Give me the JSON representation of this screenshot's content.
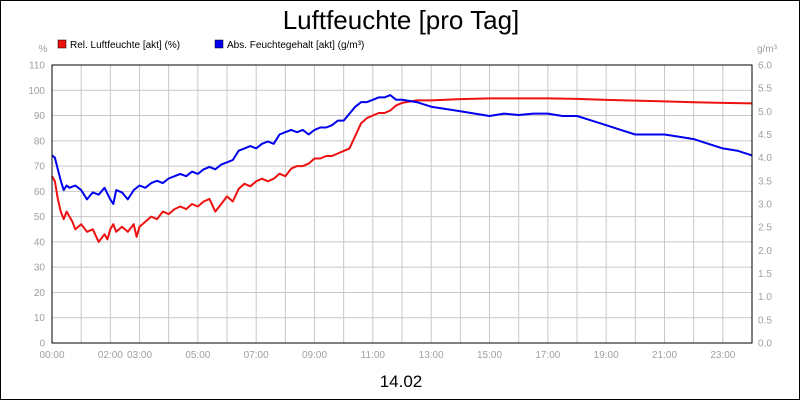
{
  "chart_data": {
    "type": "line",
    "title": "Luftfeuchte [pro Tag]",
    "xlabel": "14.02",
    "y_left_unit": "%",
    "y_right_unit": "g/m³",
    "x_ticks": [
      "00:00",
      "02:00",
      "03:00",
      "05:00",
      "07:00",
      "09:00",
      "11:00",
      "13:00",
      "15:00",
      "17:00",
      "19:00",
      "21:00",
      "23:00"
    ],
    "x_tick_hours": [
      0,
      2,
      3,
      5,
      7,
      9,
      11,
      13,
      15,
      17,
      19,
      21,
      23
    ],
    "x_range_hours": [
      0,
      24
    ],
    "y_left_ticks": [
      "0",
      "10",
      "20",
      "30",
      "40",
      "50",
      "60",
      "70",
      "80",
      "90",
      "100",
      "110"
    ],
    "y_left_range": [
      0,
      110
    ],
    "y_right_ticks": [
      "0.0",
      "0.5",
      "1.0",
      "1.5",
      "2.0",
      "2.5",
      "3.0",
      "3.5",
      "4.0",
      "4.5",
      "5.0",
      "5.5",
      "6.0"
    ],
    "y_right_range": [
      0,
      6
    ],
    "grid": true,
    "legend_position": "top-left",
    "series": [
      {
        "name": "Rel. Luftfeuchte [akt] (%)",
        "color": "#ee1111",
        "axis": "left",
        "x": [
          0,
          0.1,
          0.2,
          0.3,
          0.4,
          0.5,
          0.6,
          0.7,
          0.8,
          0.9,
          1.0,
          1.2,
          1.4,
          1.6,
          1.8,
          1.9,
          2.0,
          2.1,
          2.2,
          2.4,
          2.6,
          2.8,
          2.9,
          3.0,
          3.2,
          3.4,
          3.6,
          3.8,
          4.0,
          4.2,
          4.4,
          4.6,
          4.8,
          5.0,
          5.2,
          5.4,
          5.6,
          5.8,
          6.0,
          6.2,
          6.4,
          6.6,
          6.8,
          7.0,
          7.2,
          7.4,
          7.6,
          7.8,
          8.0,
          8.2,
          8.4,
          8.6,
          8.8,
          9.0,
          9.2,
          9.4,
          9.6,
          9.8,
          10.0,
          10.2,
          10.4,
          10.6,
          10.8,
          11.0,
          11.2,
          11.4,
          11.6,
          11.8,
          12.0,
          12.5,
          13.0,
          14.0,
          15.0,
          16.0,
          17.0,
          18.0,
          19.0,
          20.0,
          21.0,
          22.0,
          23.0,
          24.0
        ],
        "values": [
          66,
          64,
          57,
          52,
          49,
          52,
          50,
          48,
          45,
          46,
          47,
          44,
          45,
          40,
          43,
          41,
          45,
          47,
          44,
          46,
          44,
          47,
          42,
          46,
          48,
          50,
          49,
          52,
          51,
          53,
          54,
          53,
          55,
          54,
          56,
          57,
          52,
          55,
          58,
          56,
          61,
          63,
          62,
          64,
          65,
          64,
          65,
          67,
          66,
          69,
          70,
          70,
          71,
          73,
          73,
          74,
          74,
          75,
          76,
          77,
          82,
          87,
          89,
          90,
          91,
          91,
          92,
          94,
          95,
          96,
          96,
          96.5,
          96.8,
          96.8,
          96.8,
          96.6,
          96.2,
          95.9,
          95.6,
          95.3,
          95.0,
          94.8
        ]
      },
      {
        "name": "Abs. Feuchtegehalt [akt] (g/m³)",
        "color": "#0000ee",
        "axis": "right",
        "x": [
          0,
          0.1,
          0.2,
          0.3,
          0.4,
          0.5,
          0.6,
          0.8,
          1.0,
          1.2,
          1.4,
          1.6,
          1.8,
          2.0,
          2.1,
          2.2,
          2.4,
          2.6,
          2.8,
          3.0,
          3.2,
          3.4,
          3.6,
          3.8,
          4.0,
          4.2,
          4.4,
          4.6,
          4.8,
          5.0,
          5.2,
          5.4,
          5.6,
          5.8,
          6.0,
          6.2,
          6.4,
          6.6,
          6.8,
          7.0,
          7.2,
          7.4,
          7.6,
          7.8,
          8.0,
          8.2,
          8.4,
          8.6,
          8.8,
          9.0,
          9.2,
          9.4,
          9.6,
          9.8,
          10.0,
          10.2,
          10.4,
          10.6,
          10.8,
          11.0,
          11.2,
          11.4,
          11.6,
          11.8,
          12.0,
          12.5,
          13.0,
          13.5,
          14.0,
          14.5,
          15.0,
          15.5,
          16.0,
          16.5,
          17.0,
          17.5,
          18.0,
          18.5,
          19.0,
          19.5,
          20.0,
          20.5,
          21.0,
          21.5,
          22.0,
          22.5,
          23.0,
          23.5,
          24.0
        ],
        "values": [
          4.05,
          4.0,
          3.75,
          3.5,
          3.3,
          3.4,
          3.35,
          3.4,
          3.3,
          3.1,
          3.25,
          3.2,
          3.35,
          3.1,
          3.0,
          3.3,
          3.25,
          3.1,
          3.3,
          3.4,
          3.35,
          3.45,
          3.5,
          3.45,
          3.55,
          3.6,
          3.65,
          3.6,
          3.7,
          3.65,
          3.75,
          3.8,
          3.75,
          3.85,
          3.9,
          3.95,
          4.15,
          4.2,
          4.25,
          4.2,
          4.3,
          4.35,
          4.3,
          4.5,
          4.55,
          4.6,
          4.55,
          4.6,
          4.5,
          4.6,
          4.65,
          4.65,
          4.7,
          4.8,
          4.8,
          4.95,
          5.1,
          5.2,
          5.2,
          5.25,
          5.3,
          5.3,
          5.35,
          5.25,
          5.25,
          5.2,
          5.1,
          5.05,
          5.0,
          4.95,
          4.9,
          4.95,
          4.92,
          4.95,
          4.95,
          4.9,
          4.9,
          4.8,
          4.7,
          4.6,
          4.5,
          4.5,
          4.5,
          4.45,
          4.4,
          4.3,
          4.2,
          4.15,
          4.05
        ]
      }
    ]
  }
}
